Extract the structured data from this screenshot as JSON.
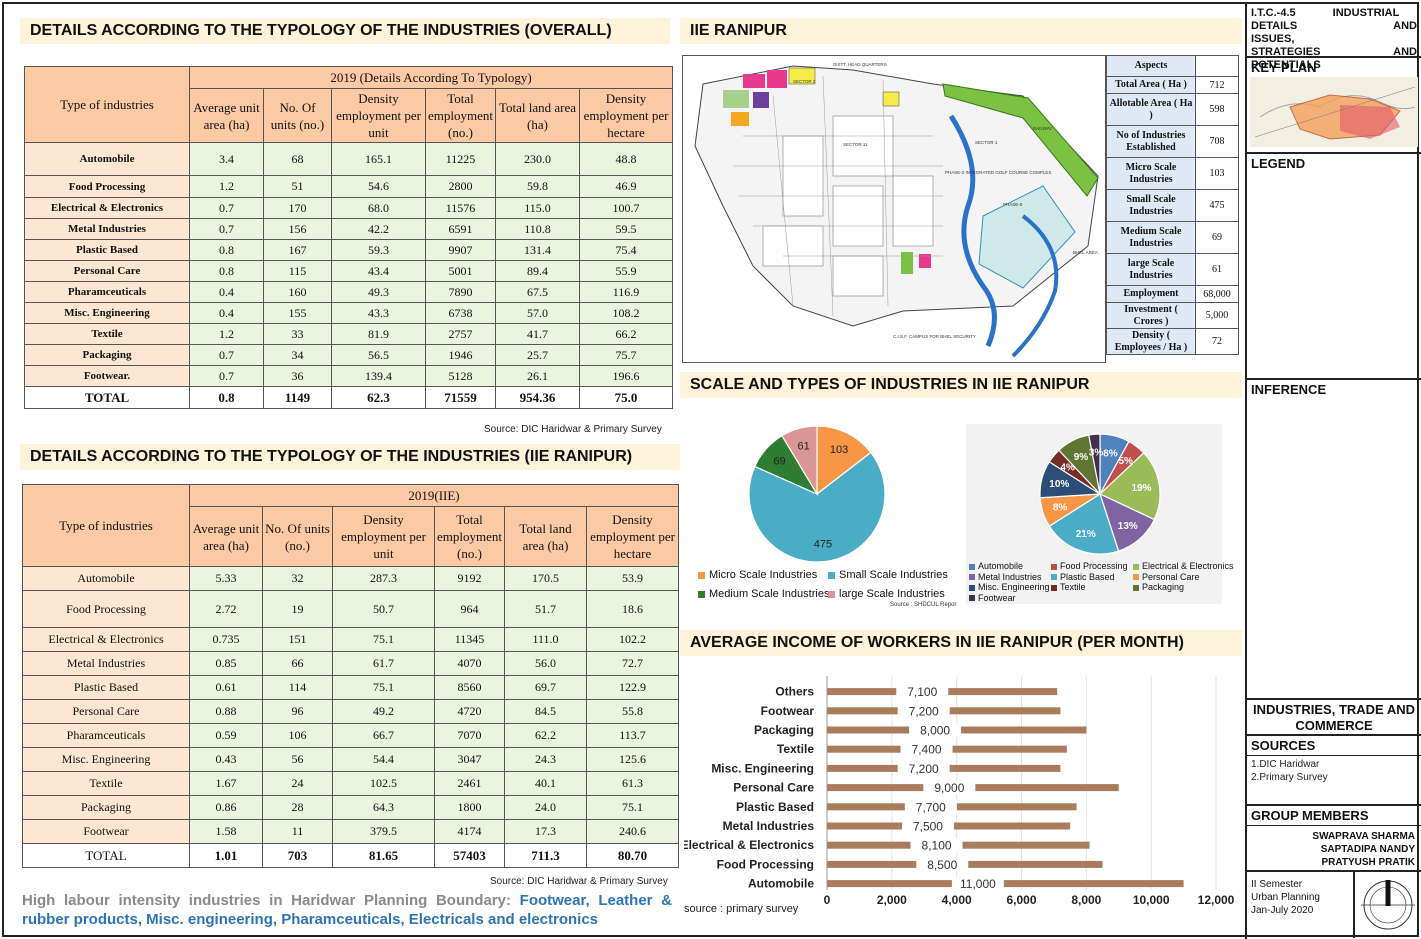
{
  "headings": {
    "overall": "DETAILS ACCORDING TO THE TYPOLOGY OF THE INDUSTRIES (OVERALL)",
    "iie": "DETAILS ACCORDING TO THE TYPOLOGY OF THE INDUSTRIES (IIE RANIPUR)",
    "ranipur": "IIE RANIPUR",
    "scale": "SCALE AND TYPES OF INDUSTRIES IN IIE RANIPUR",
    "income": "AVERAGE INCOME OF WORKERS IN IIE RANIPUR (PER MONTH)"
  },
  "overall_table": {
    "group_header": "2019 (Details According To Typology)",
    "columns": [
      "Type of industries",
      "Average unit area (ha)",
      "No. Of units (no.)",
      "Density employment per unit",
      "Total employment (no.)",
      "Total land area (ha)",
      "Density employment per hectare"
    ],
    "rows": [
      [
        "Automobile",
        "3.4",
        "68",
        "165.1",
        "11225",
        "230.0",
        "48.8"
      ],
      [
        "Food Processing",
        "1.2",
        "51",
        "54.6",
        "2800",
        "59.8",
        "46.9"
      ],
      [
        "Electrical & Electronics",
        "0.7",
        "170",
        "68.0",
        "11576",
        "115.0",
        "100.7"
      ],
      [
        "Metal Industries",
        "0.7",
        "156",
        "42.2",
        "6591",
        "110.8",
        "59.5"
      ],
      [
        "Plastic Based",
        "0.8",
        "167",
        "59.3",
        "9907",
        "131.4",
        "75.4"
      ],
      [
        "Personal Care",
        "0.8",
        "115",
        "43.4",
        "5001",
        "89.4",
        "55.9"
      ],
      [
        "Pharamceuticals",
        "0.4",
        "160",
        "49.3",
        "7890",
        "67.5",
        "116.9"
      ],
      [
        "Misc. Engineering",
        "0.4",
        "155",
        "43.3",
        "6738",
        "57.0",
        "108.2"
      ],
      [
        "Textile",
        "1.2",
        "33",
        "81.9",
        "2757",
        "41.7",
        "66.2"
      ],
      [
        "Packaging",
        "0.7",
        "34",
        "56.5",
        "1946",
        "25.7",
        "75.7"
      ],
      [
        "Footwear.",
        "0.7",
        "36",
        "139.4",
        "5128",
        "26.1",
        "196.6"
      ]
    ],
    "total": [
      "TOTAL",
      "0.8",
      "1149",
      "62.3",
      "71559",
      "954.36",
      "75.0"
    ],
    "source": "Source: DIC Haridwar & Primary Survey"
  },
  "iie_table": {
    "group_header": "2019(IIE)",
    "columns": [
      "Type of industries",
      "Average unit area (ha)",
      "No. Of units (no.)",
      "Density employment per unit",
      "Total employment (no.)",
      "Total land area (ha)",
      "Density employment per hectare"
    ],
    "rows": [
      [
        "Automobile",
        "5.33",
        "32",
        "287.3",
        "9192",
        "170.5",
        "53.9"
      ],
      [
        "Food Processing",
        "2.72",
        "19",
        "50.7",
        "964",
        "51.7",
        "18.6"
      ],
      [
        "Electrical & Electronics",
        "0.735",
        "151",
        "75.1",
        "11345",
        "111.0",
        "102.2"
      ],
      [
        "Metal Industries",
        "0.85",
        "66",
        "61.7",
        "4070",
        "56.0",
        "72.7"
      ],
      [
        "Plastic Based",
        "0.61",
        "114",
        "75.1",
        "8560",
        "69.7",
        "122.9"
      ],
      [
        "Personal Care",
        "0.88",
        "96",
        "49.2",
        "4720",
        "84.5",
        "55.8"
      ],
      [
        "Pharamceuticals",
        "0.59",
        "106",
        "66.7",
        "7070",
        "62.2",
        "113.7"
      ],
      [
        "Misc. Engineering",
        "0.43",
        "56",
        "54.4",
        "3047",
        "24.3",
        "125.6"
      ],
      [
        "Textile",
        "1.67",
        "24",
        "102.5",
        "2461",
        "40.1",
        "61.3"
      ],
      [
        "Packaging",
        "0.86",
        "28",
        "64.3",
        "1800",
        "24.0",
        "75.1"
      ],
      [
        "Footwear",
        "1.58",
        "11",
        "379.5",
        "4174",
        "17.3",
        "240.6"
      ]
    ],
    "total": [
      "TOTAL",
      "1.01",
      "703",
      "81.65",
      "57403",
      "711.3",
      "80.70"
    ],
    "source": "Source: DIC Haridwar & Primary Survey"
  },
  "highlight": {
    "lead": "High labour intensity industries in Haridwar Planning Boundary:",
    "list": "Footwear, Leather & rubber products, Misc. engineering, Pharamceuticals, Electricals and electronics"
  },
  "aspects": {
    "header": "Aspects",
    "rows": [
      [
        "Total Area ( Ha )",
        "712"
      ],
      [
        "Allotable Area ( Ha )",
        "598"
      ],
      [
        "No of Industries Established",
        "708"
      ],
      [
        "Micro Scale Industries",
        "103"
      ],
      [
        "Small Scale Industries",
        "475"
      ],
      [
        "Medium Scale Industries",
        "69"
      ],
      [
        "large Scale Industries",
        "61"
      ],
      [
        "Employment",
        "68,000"
      ],
      [
        "Investment ( Crores )",
        "5,000"
      ],
      [
        "Density ( Employees / Ha )",
        "72"
      ]
    ]
  },
  "map": {
    "labels": [
      "DISTT. HEAD QUARTERS",
      "SECTOR 2",
      "SECTOR 11",
      "SECTOR 1",
      "PHASE-2 INTEGRATED GOLF COURSE COMPLEX",
      "PHASE-II",
      "BHEL AREA",
      "C.I.S.F. CAMPUS FOR BHEL SECURITY",
      "RAILWAY"
    ]
  },
  "chart_data": [
    {
      "type": "pie",
      "categories": [
        "Micro Scale Industries",
        "Small Scale Industries",
        "Medium Scale Industries",
        "large Scale Industries"
      ],
      "values": [
        103,
        475,
        69,
        61
      ],
      "colors": [
        "#f79646",
        "#4bacc6",
        "#2f7d32",
        "#d99694"
      ],
      "source": "Source : SHDCUL Repor"
    },
    {
      "type": "pie",
      "categories": [
        "Automobile",
        "Food Processing",
        "Electrical & Electronics",
        "Metal Industries",
        "Plastic Based",
        "Personal Care",
        "Misc. Engineering",
        "Textile",
        "Packaging",
        "Footwear"
      ],
      "values": [
        8,
        5,
        19,
        13,
        21,
        8,
        10,
        4,
        9,
        3
      ],
      "labels": [
        "8%",
        "5%",
        "19%",
        "13%",
        "21%",
        "8%",
        "10%",
        "4%",
        "9%",
        "3%"
      ],
      "colors": [
        "#4f81bd",
        "#c0504d",
        "#9bbb59",
        "#8064a2",
        "#4bacc6",
        "#f79646",
        "#2c4d75",
        "#772c2a",
        "#5f7530",
        "#403151"
      ]
    },
    {
      "type": "bar",
      "orientation": "horizontal",
      "categories": [
        "Others",
        "Footwear",
        "Packaging",
        "Textile",
        "Misc. Engineering",
        "Personal Care",
        "Plastic Based",
        "Metal Industries",
        "Electrical & Electronics",
        "Food Processing",
        "Automobile"
      ],
      "values": [
        7100,
        7200,
        8000,
        7400,
        7200,
        9000,
        7700,
        7500,
        8100,
        8500,
        11000
      ],
      "value_labels": [
        "7,100",
        "7,200",
        "8,000",
        "7,400",
        "7,200",
        "9,000",
        "7,700",
        "7,500",
        "8,100",
        "8,500",
        "11,000"
      ],
      "xticks": [
        "0",
        "2,000",
        "4,000",
        "6,000",
        "8,000",
        "10,000",
        "12,000"
      ],
      "xlim": [
        0,
        12000
      ],
      "color": "#a97c5e",
      "source": "source : primary survey"
    }
  ],
  "panel": {
    "itc_line1": "I.T.C.-4.5 INDUSTRIAL",
    "itc_line2": "DETAILS AND ISSUES,",
    "itc_line3": "STRATEGIES AND POTENTIALS",
    "key_plan": "KEY PLAN",
    "legend": "LEGEND",
    "inference": "INFERENCE",
    "industries": "INDUSTRIES, TRADE AND COMMERCE",
    "sources_title": "SOURCES",
    "sources": [
      "1.DIC Haridwar",
      "2.Primary Survey"
    ],
    "group_title": "GROUP MEMBERS",
    "members": [
      "SWAPRAVA SHARMA",
      "SAPTADIPA NANDY",
      "PRATYUSH PRATIK"
    ],
    "semester": [
      "II Semester",
      "Urban Planning",
      "Jan-July 2020"
    ]
  }
}
